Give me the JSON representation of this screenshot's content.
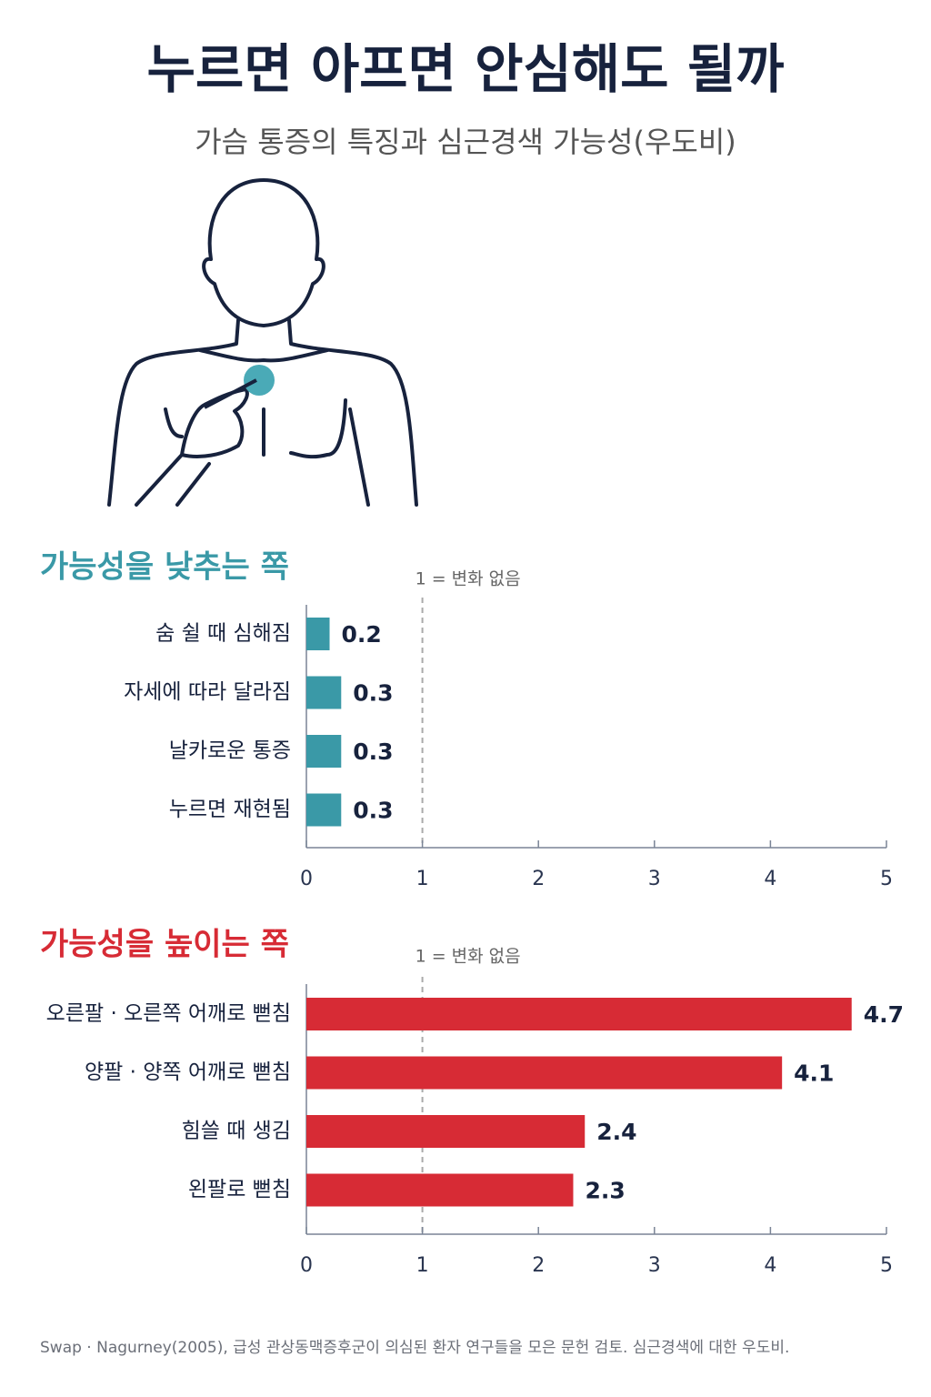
{
  "header": {
    "title": "누르면 아프면 안심해도 될까",
    "subtitle": "가슴 통증의 특징과 심근경색 가능성(우도비)"
  },
  "chart_data": [
    {
      "type": "bar",
      "orientation": "horizontal",
      "title": "가능성을 낮추는 쪽",
      "color": "#3a99a7",
      "categories": [
        "숨 쉴 때 심해짐",
        "자세에 따라 달라짐",
        "날카로운 통증",
        "누르면 재현됨"
      ],
      "values": [
        0.2,
        0.3,
        0.3,
        0.3
      ],
      "xlim": [
        0,
        5
      ],
      "xticks": [
        0,
        1,
        2,
        3,
        4,
        5
      ],
      "reference_line": {
        "value": 1,
        "label": "1 = 변화 없음"
      }
    },
    {
      "type": "bar",
      "orientation": "horizontal",
      "title": "가능성을 높이는 쪽",
      "color": "#d72b35",
      "categories": [
        "오른팔 · 오른쪽 어깨로 뻗침",
        "양팔 · 양쪽 어깨로 뻗침",
        "힘쓸 때 생김",
        "왼팔로 뻗침"
      ],
      "values": [
        4.7,
        4.1,
        2.4,
        2.3
      ],
      "xlim": [
        0,
        5
      ],
      "xticks": [
        0,
        1,
        2,
        3,
        4,
        5
      ],
      "reference_line": {
        "value": 1,
        "label": "1 = 변화 없음"
      }
    }
  ],
  "source": "Swap · Nagurney(2005), 급성 관상동맥증후군이 의심된 환자 연구들을 모은 문헌 검토. 심근경색에 대한 우도비."
}
